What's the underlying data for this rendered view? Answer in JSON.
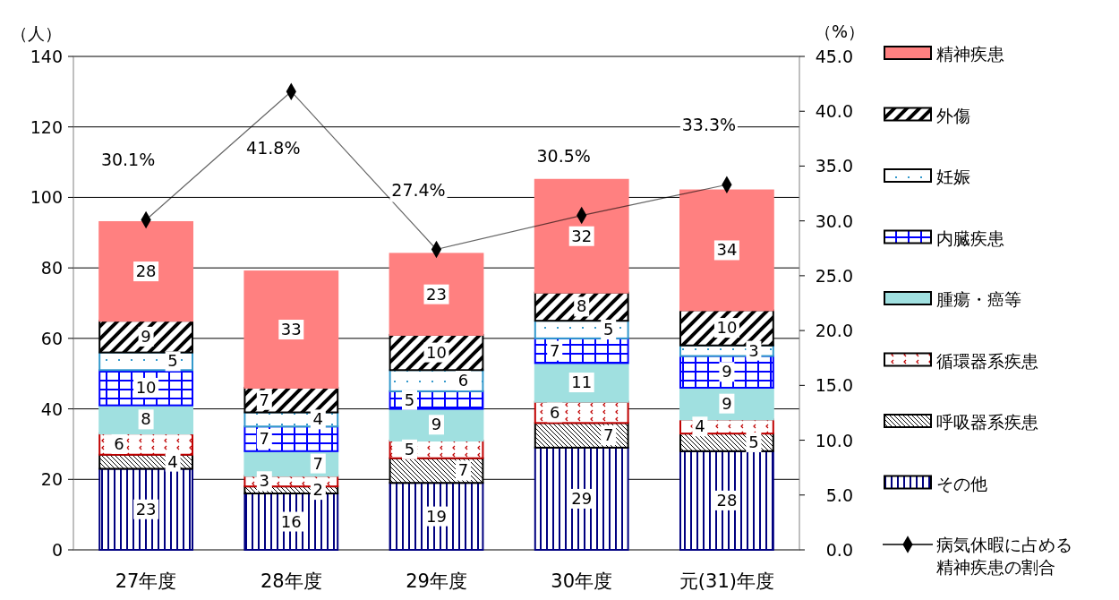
{
  "chart_data": {
    "type": "bar",
    "stacked": true,
    "categories": [
      "27年度",
      "28年度",
      "29年度",
      "30年度",
      "元(31)年度"
    ],
    "ylabel": "（人）",
    "y2label": "（%）",
    "ylim": [
      0,
      140
    ],
    "yticks": [
      0,
      20,
      40,
      60,
      80,
      100,
      120,
      140
    ],
    "y2lim": [
      0,
      45
    ],
    "y2ticks": [
      {
        "value": 0,
        "label": "0.0"
      },
      {
        "value": 5,
        "label": "5.0"
      },
      {
        "value": 10,
        "label": "10.0"
      },
      {
        "value": 15,
        "label": "15.0"
      },
      {
        "value": 20,
        "label": "20.0"
      },
      {
        "value": 25,
        "label": "25.0"
      },
      {
        "value": 30,
        "label": "30.0"
      },
      {
        "value": 35,
        "label": "35.0"
      },
      {
        "value": 40,
        "label": "40.0"
      },
      {
        "value": 45,
        "label": "45.0"
      }
    ],
    "grid": "y",
    "legend": "right",
    "data_labels": true,
    "series": [
      {
        "name": "その他",
        "color": "#000080",
        "values": [
          23,
          16,
          19,
          29,
          28
        ]
      },
      {
        "name": "呼吸器系疾患",
        "color": "#000000",
        "values": [
          4,
          2,
          7,
          7,
          5
        ]
      },
      {
        "name": "循環器系疾患",
        "color": "#c00000",
        "values": [
          6,
          3,
          5,
          6,
          4
        ]
      },
      {
        "name": "腫瘍・癌等",
        "color": "#a0e0e0",
        "values": [
          8,
          7,
          9,
          11,
          9
        ]
      },
      {
        "name": "内臓疾患",
        "color": "#0000ff",
        "values": [
          10,
          7,
          5,
          7,
          9
        ]
      },
      {
        "name": "妊娠",
        "color": "#3399cc",
        "values": [
          5,
          4,
          6,
          5,
          3
        ]
      },
      {
        "name": "外傷",
        "color": "#000000",
        "values": [
          9,
          7,
          10,
          8,
          10
        ]
      },
      {
        "name": "精神疾患",
        "color": "#ff8080",
        "values": [
          28,
          33,
          23,
          32,
          34
        ]
      },
      {
        "name": "病気休暇に占める精神疾患の割合",
        "type": "line",
        "axis": "y2",
        "color": "#000000",
        "marker": "diamond",
        "values": [
          30.1,
          41.8,
          27.4,
          30.5,
          33.3
        ],
        "value_labels": [
          "30.1%",
          "41.8%",
          "27.4%",
          "30.5%",
          "33.3%"
        ]
      }
    ]
  }
}
